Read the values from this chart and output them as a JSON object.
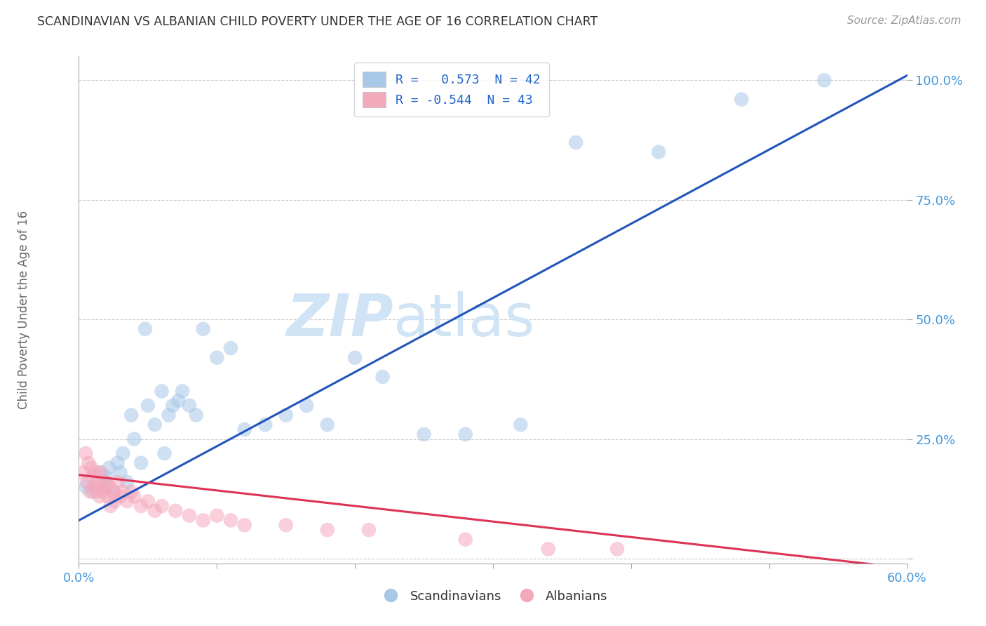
{
  "title": "SCANDINAVIAN VS ALBANIAN CHILD POVERTY UNDER THE AGE OF 16 CORRELATION CHART",
  "source": "Source: ZipAtlas.com",
  "ylabel": "Child Poverty Under the Age of 16",
  "xlim": [
    0.0,
    0.6
  ],
  "ylim": [
    -0.01,
    1.05
  ],
  "xticks": [
    0.0,
    0.1,
    0.2,
    0.3,
    0.4,
    0.5,
    0.6
  ],
  "xticklabels": [
    "0.0%",
    "",
    "",
    "",
    "",
    "",
    "60.0%"
  ],
  "yticks": [
    0.0,
    0.25,
    0.5,
    0.75,
    1.0
  ],
  "yticklabels": [
    "",
    "25.0%",
    "50.0%",
    "75.0%",
    "100.0%"
  ],
  "blue_color": "#A8C8E8",
  "pink_color": "#F4A8BC",
  "blue_line_color": "#2255BB",
  "pink_line_color": "#DD3355",
  "blue_points_x": [
    0.005,
    0.01,
    0.015,
    0.018,
    0.02,
    0.022,
    0.025,
    0.028,
    0.03,
    0.032,
    0.035,
    0.038,
    0.04,
    0.045,
    0.048,
    0.05,
    0.055,
    0.06,
    0.062,
    0.065,
    0.068,
    0.072,
    0.075,
    0.08,
    0.085,
    0.09,
    0.1,
    0.11,
    0.12,
    0.135,
    0.15,
    0.165,
    0.18,
    0.2,
    0.22,
    0.25,
    0.28,
    0.32,
    0.36,
    0.42,
    0.48,
    0.54
  ],
  "blue_points_y": [
    0.15,
    0.14,
    0.18,
    0.16,
    0.17,
    0.19,
    0.14,
    0.2,
    0.18,
    0.22,
    0.16,
    0.3,
    0.25,
    0.2,
    0.48,
    0.32,
    0.28,
    0.35,
    0.22,
    0.3,
    0.32,
    0.33,
    0.35,
    0.32,
    0.3,
    0.48,
    0.42,
    0.44,
    0.27,
    0.28,
    0.3,
    0.32,
    0.28,
    0.42,
    0.38,
    0.26,
    0.26,
    0.28,
    0.87,
    0.85,
    0.96,
    1.0
  ],
  "pink_points_x": [
    0.003,
    0.005,
    0.006,
    0.007,
    0.008,
    0.009,
    0.01,
    0.011,
    0.012,
    0.013,
    0.014,
    0.015,
    0.016,
    0.017,
    0.018,
    0.02,
    0.021,
    0.022,
    0.023,
    0.025,
    0.026,
    0.028,
    0.03,
    0.032,
    0.035,
    0.038,
    0.04,
    0.045,
    0.05,
    0.055,
    0.06,
    0.07,
    0.08,
    0.09,
    0.1,
    0.11,
    0.12,
    0.15,
    0.18,
    0.21,
    0.28,
    0.34,
    0.39
  ],
  "pink_points_y": [
    0.18,
    0.22,
    0.16,
    0.2,
    0.14,
    0.19,
    0.17,
    0.15,
    0.18,
    0.14,
    0.16,
    0.13,
    0.18,
    0.15,
    0.14,
    0.16,
    0.13,
    0.15,
    0.11,
    0.14,
    0.12,
    0.16,
    0.13,
    0.14,
    0.12,
    0.14,
    0.13,
    0.11,
    0.12,
    0.1,
    0.11,
    0.1,
    0.09,
    0.08,
    0.09,
    0.08,
    0.07,
    0.07,
    0.06,
    0.06,
    0.04,
    0.02,
    0.02
  ],
  "watermark_color": "#D0E4F5",
  "background_color": "#FFFFFF",
  "grid_color": "#CCCCCC",
  "title_color": "#333333",
  "axis_label_color": "#666666",
  "tick_color": "#4499DD",
  "scatter_alpha": 0.55,
  "scatter_size": 220,
  "figsize": [
    14.06,
    8.92
  ]
}
